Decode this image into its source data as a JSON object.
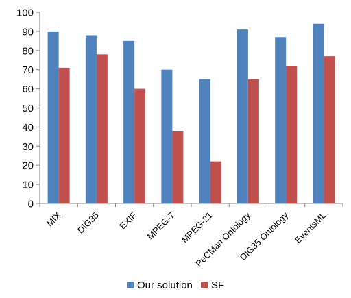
{
  "chart_data": {
    "type": "bar",
    "categories": [
      "MIX",
      "DIG35",
      "EXIF",
      "MPEG-7",
      "MPEG-21",
      "PeCMan Ontology",
      "DIG35 Ontology",
      "EventsML"
    ],
    "series": [
      {
        "name": "Our solution",
        "values": [
          90,
          88,
          85,
          70,
          65,
          91,
          87,
          94
        ],
        "color": "#4F81BD"
      },
      {
        "name": "SF",
        "values": [
          71,
          78,
          60,
          38,
          22,
          65,
          72,
          77
        ],
        "color": "#C0504D"
      }
    ],
    "ylim": [
      0,
      100
    ],
    "yticks": [
      0,
      10,
      20,
      30,
      40,
      50,
      60,
      70,
      80,
      90,
      100
    ],
    "title": "",
    "xlabel": "",
    "ylabel": "",
    "grid": false,
    "legend_position": "bottom"
  }
}
